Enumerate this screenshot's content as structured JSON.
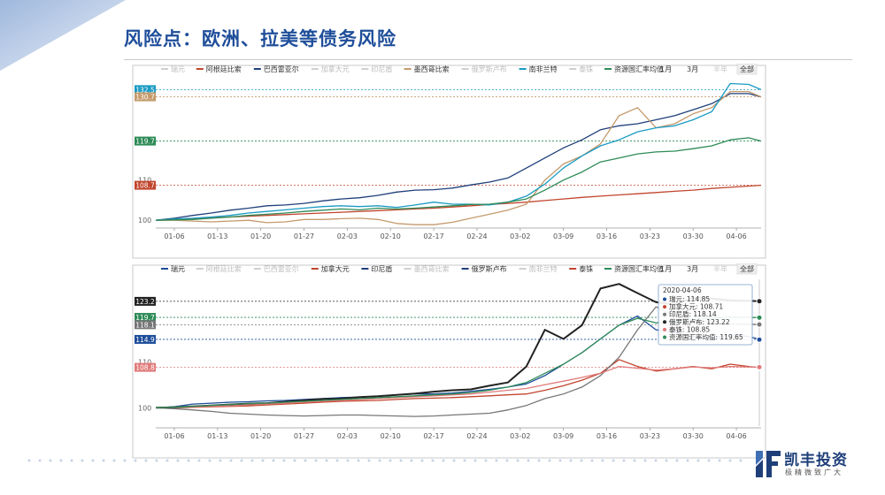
{
  "slide": {
    "title": "风险点：欧洲、拉美等债务风险",
    "colors": {
      "title": "#1f4e9a",
      "accent": "#3f6fb5"
    }
  },
  "logo": {
    "name": "凯丰投资",
    "slogan": "极精微致广大"
  },
  "chart_data": [
    {
      "type": "line",
      "range_buttons": [
        "1月",
        "3月",
        "半年",
        "全部"
      ],
      "selected_range": "全部",
      "x_ticks": [
        "01-06",
        "01-13",
        "01-20",
        "01-27",
        "02-03",
        "02-10",
        "02-17",
        "02-24",
        "03-02",
        "03-09",
        "03-16",
        "03-23",
        "03-30",
        "04-06"
      ],
      "y_ticks": [
        100,
        110
      ],
      "ylim": [
        98.5,
        135
      ],
      "legend": [
        {
          "name": "瑞元",
          "active": false
        },
        {
          "name": "阿根廷比索",
          "active": true
        },
        {
          "name": "巴西雷亚尔",
          "active": true
        },
        {
          "name": "加拿大元",
          "active": false
        },
        {
          "name": "印尼盾",
          "active": false
        },
        {
          "name": "墨西哥比索",
          "active": true
        },
        {
          "name": "俄罗斯卢布",
          "active": false
        },
        {
          "name": "南非兰特",
          "active": true
        },
        {
          "name": "泰铢",
          "active": false
        },
        {
          "name": "资源国汇率均值",
          "active": true
        }
      ],
      "end_labels": [
        {
          "text": "132.5",
          "value": 132.5,
          "color": "#1a9bc4"
        },
        {
          "text": "130.7",
          "value": 130.7,
          "color": "#c49a6c"
        },
        {
          "text": "119.7",
          "value": 119.7,
          "color": "#2e8b57"
        },
        {
          "text": "108.7",
          "value": 108.7,
          "color": "#c2452d"
        }
      ],
      "series": [
        {
          "name": "阿根廷比索",
          "color": "#c2452d",
          "x": [
            0,
            3,
            6,
            9,
            12,
            15,
            18,
            21,
            24,
            27,
            30,
            33,
            36,
            39,
            42,
            45,
            48,
            51,
            54,
            57,
            60,
            63,
            66,
            69,
            72,
            75,
            78,
            81,
            84,
            87,
            90,
            93,
            96,
            98
          ],
          "y": [
            100,
            100.2,
            100.4,
            100.6,
            100.8,
            101,
            101.2,
            101.4,
            101.6,
            101.8,
            102,
            102.2,
            102.4,
            102.6,
            102.8,
            103,
            103.3,
            103.6,
            103.9,
            104.2,
            104.5,
            104.9,
            105.3,
            105.7,
            106,
            106.3,
            106.6,
            106.9,
            107.2,
            107.5,
            107.9,
            108.2,
            108.5,
            108.7
          ]
        },
        {
          "name": "巴西雷亚尔",
          "color": "#1f3f7a",
          "x": [
            0,
            3,
            6,
            9,
            12,
            15,
            18,
            21,
            24,
            27,
            30,
            33,
            36,
            39,
            42,
            45,
            48,
            51,
            54,
            57,
            60,
            63,
            66,
            69,
            72,
            75,
            78,
            81,
            84,
            87,
            90,
            93,
            96,
            98
          ],
          "y": [
            100,
            100.5,
            101.2,
            101.8,
            102.5,
            103,
            103.6,
            103.8,
            104.2,
            104.8,
            105.3,
            105.6,
            106.2,
            107,
            107.5,
            107.6,
            108,
            108.8,
            109.5,
            110.5,
            113,
            115.5,
            118,
            120,
            122.5,
            123.5,
            124,
            125,
            126,
            127.5,
            129,
            131.5,
            131.5,
            130.7
          ]
        },
        {
          "name": "墨西哥比索",
          "color": "#c49a6c",
          "x": [
            0,
            3,
            6,
            9,
            12,
            15,
            18,
            21,
            24,
            27,
            30,
            33,
            36,
            39,
            42,
            45,
            48,
            51,
            54,
            57,
            60,
            63,
            66,
            69,
            72,
            75,
            78,
            81,
            84,
            87,
            90,
            93,
            96,
            98
          ],
          "y": [
            100,
            100,
            99.8,
            99.6,
            99.8,
            100,
            99.4,
            99.6,
            100.2,
            100.2,
            100.4,
            100.5,
            100.2,
            99.2,
            98.9,
            98.9,
            99.5,
            100.5,
            101.5,
            102.5,
            104,
            110,
            114,
            116,
            119,
            126,
            128,
            123,
            124,
            126.5,
            128,
            132,
            132,
            130.7
          ]
        },
        {
          "name": "南非兰特",
          "color": "#1a9bc4",
          "x": [
            0,
            3,
            6,
            9,
            12,
            15,
            18,
            21,
            24,
            27,
            30,
            33,
            36,
            39,
            42,
            45,
            48,
            51,
            54,
            57,
            60,
            63,
            66,
            69,
            72,
            75,
            78,
            81,
            84,
            87,
            90,
            93,
            96,
            98
          ],
          "y": [
            100,
            100.3,
            100.5,
            100.8,
            101.2,
            101.8,
            102.2,
            102.6,
            103,
            103.4,
            103.6,
            103.4,
            103.6,
            103.2,
            103.8,
            104.5,
            104,
            104,
            103.8,
            104.5,
            106,
            109,
            113,
            116,
            118.5,
            120,
            122,
            123,
            123.5,
            125,
            127,
            134,
            133.8,
            132.5
          ]
        },
        {
          "name": "资源国汇率均值",
          "color": "#2e8b57",
          "x": [
            0,
            3,
            6,
            9,
            12,
            15,
            18,
            21,
            24,
            27,
            30,
            33,
            36,
            39,
            42,
            45,
            48,
            51,
            54,
            57,
            60,
            63,
            66,
            69,
            72,
            75,
            78,
            81,
            84,
            87,
            90,
            93,
            96,
            98
          ],
          "y": [
            100,
            100.1,
            100.2,
            100.5,
            100.8,
            101.2,
            101.5,
            101.8,
            102.2,
            102.5,
            102.8,
            102.6,
            103,
            102.8,
            103,
            103.3,
            103.6,
            103.9,
            104,
            104.5,
            105.3,
            107.5,
            110,
            112,
            114.5,
            115.5,
            116.5,
            117,
            117.2,
            117.8,
            118.5,
            120,
            120.5,
            119.7
          ]
        }
      ]
    },
    {
      "type": "line",
      "range_buttons": [
        "1月",
        "3月",
        "半年",
        "全部"
      ],
      "selected_range": "全部",
      "x_ticks": [
        "01-06",
        "01-13",
        "01-20",
        "01-27",
        "02-03",
        "02-10",
        "02-17",
        "02-24",
        "03-02",
        "03-09",
        "03-16",
        "03-23",
        "03-30",
        "04-06"
      ],
      "y_ticks": [
        100,
        110
      ],
      "ylim": [
        96,
        128
      ],
      "legend": [
        {
          "name": "瑞元",
          "active": true
        },
        {
          "name": "阿根廷比索",
          "active": false
        },
        {
          "name": "巴西雷亚尔",
          "active": false
        },
        {
          "name": "加拿大元",
          "active": true
        },
        {
          "name": "印尼盾",
          "active": true
        },
        {
          "name": "墨西哥比索",
          "active": false
        },
        {
          "name": "俄罗斯卢布",
          "active": true
        },
        {
          "name": "南非兰特",
          "active": false
        },
        {
          "name": "泰铢",
          "active": true
        },
        {
          "name": "资源国汇率均值",
          "active": true
        }
      ],
      "end_labels": [
        {
          "text": "123.2",
          "value": 123.2,
          "color": "#222222"
        },
        {
          "text": "119.7",
          "value": 119.7,
          "color": "#2e8b57"
        },
        {
          "text": "118.1",
          "value": 118.1,
          "color": "#777777"
        },
        {
          "text": "114.9",
          "value": 114.9,
          "color": "#1f4e9a"
        },
        {
          "text": "108.8",
          "value": 108.8,
          "color": "#e07a7a"
        }
      ],
      "tooltip": {
        "date": "2020-04-06",
        "rows": [
          {
            "text": "瑞元: 114.85",
            "color": "#1f4e9a"
          },
          {
            "text": "加拿大元: 108.71",
            "color": "#c2452d"
          },
          {
            "text": "印尼盾: 118.14",
            "color": "#777777"
          },
          {
            "text": "俄罗斯卢布: 123.22",
            "color": "#222222"
          },
          {
            "text": "泰铢: 108.85",
            "color": "#e07a7a"
          },
          {
            "text": "资源国汇率均值: 119.65",
            "color": "#2e8b57"
          }
        ]
      },
      "series": [
        {
          "name": "瑞元",
          "color": "#1f4e9a",
          "x": [
            0,
            3,
            6,
            9,
            12,
            15,
            18,
            21,
            24,
            27,
            30,
            33,
            36,
            39,
            42,
            45,
            48,
            51,
            54,
            57,
            60,
            63,
            66,
            69,
            72,
            75,
            78,
            81,
            84,
            87,
            90,
            93,
            96,
            98
          ],
          "y": [
            100,
            100.2,
            100.8,
            101,
            101.2,
            101.3,
            101.5,
            101.6,
            101.8,
            102,
            102.2,
            102.3,
            102.5,
            102.8,
            103,
            103,
            103.2,
            103.6,
            104,
            104.5,
            105.2,
            107,
            109.5,
            112,
            115,
            118,
            120,
            117,
            116.5,
            115.5,
            115,
            116,
            115.5,
            114.85
          ]
        },
        {
          "name": "加拿大元",
          "color": "#c2452d",
          "x": [
            0,
            3,
            6,
            9,
            12,
            15,
            18,
            21,
            24,
            27,
            30,
            33,
            36,
            39,
            42,
            45,
            48,
            51,
            54,
            57,
            60,
            63,
            66,
            69,
            72,
            75,
            78,
            81,
            84,
            87,
            90,
            93,
            96,
            98
          ],
          "y": [
            100,
            100,
            100.1,
            100.2,
            100.3,
            100.4,
            100.6,
            100.8,
            101,
            101.2,
            101.4,
            101.5,
            101.6,
            101.8,
            102,
            102.1,
            102.2,
            102.4,
            102.6,
            102.8,
            103,
            103.8,
            104.8,
            106,
            107.5,
            110.5,
            109,
            108,
            108.5,
            109,
            108.5,
            109.5,
            109,
            108.71
          ]
        },
        {
          "name": "印尼盾",
          "color": "#777777",
          "x": [
            0,
            3,
            6,
            9,
            12,
            15,
            18,
            21,
            24,
            27,
            30,
            33,
            36,
            39,
            42,
            45,
            48,
            51,
            54,
            57,
            60,
            63,
            66,
            69,
            72,
            75,
            78,
            81,
            84,
            87,
            90,
            93,
            96,
            98
          ],
          "y": [
            100,
            99.8,
            99.5,
            99.2,
            98.8,
            98.6,
            98.4,
            98.3,
            98.2,
            98.3,
            98.4,
            98.4,
            98.3,
            98.2,
            98.1,
            98.2,
            98.4,
            98.6,
            98.8,
            99.5,
            100.5,
            102,
            103,
            104.5,
            107,
            111,
            117,
            122,
            120,
            119,
            118.5,
            118.3,
            118.2,
            118.14
          ]
        },
        {
          "name": "俄罗斯卢布",
          "color": "#222222",
          "x": [
            0,
            3,
            6,
            9,
            12,
            15,
            18,
            21,
            24,
            27,
            30,
            33,
            36,
            39,
            42,
            45,
            48,
            51,
            54,
            57,
            60,
            63,
            66,
            69,
            72,
            75,
            78,
            81,
            84,
            87,
            90,
            93,
            96,
            98
          ],
          "y": [
            100,
            100.1,
            100.3,
            100.5,
            100.7,
            100.9,
            101,
            101.3,
            101.6,
            101.9,
            102,
            102.3,
            102.5,
            102.8,
            103.1,
            103.5,
            103.8,
            104,
            104.8,
            105.5,
            109,
            117,
            115,
            118,
            126,
            127,
            125,
            123,
            122.5,
            124,
            123.8,
            123.4,
            123.3,
            123.22
          ]
        },
        {
          "name": "泰铢",
          "color": "#e07a7a",
          "x": [
            0,
            3,
            6,
            9,
            12,
            15,
            18,
            21,
            24,
            27,
            30,
            33,
            36,
            39,
            42,
            45,
            48,
            51,
            54,
            57,
            60,
            63,
            66,
            69,
            72,
            75,
            78,
            81,
            84,
            87,
            90,
            93,
            96,
            98
          ],
          "y": [
            100,
            100.1,
            100.2,
            100.3,
            100.4,
            100.6,
            100.8,
            101,
            101.2,
            101.4,
            101.6,
            101.8,
            102,
            102.2,
            102.4,
            102.6,
            102.8,
            103,
            103.4,
            103.8,
            104.2,
            105,
            105.8,
            106.6,
            107.5,
            109,
            108.6,
            108.2,
            108.5,
            108.9,
            108.7,
            109,
            108.9,
            108.85
          ]
        },
        {
          "name": "资源国汇率均值",
          "color": "#2e8b57",
          "x": [
            0,
            3,
            6,
            9,
            12,
            15,
            18,
            21,
            24,
            27,
            30,
            33,
            36,
            39,
            42,
            45,
            48,
            51,
            54,
            57,
            60,
            63,
            66,
            69,
            72,
            75,
            78,
            81,
            84,
            87,
            90,
            93,
            96,
            98
          ],
          "y": [
            100,
            100.1,
            100.3,
            100.5,
            100.7,
            100.9,
            101,
            101.2,
            101.4,
            101.6,
            101.8,
            102,
            102.2,
            102.4,
            102.6,
            102.8,
            103,
            103.3,
            103.8,
            104.5,
            105.5,
            107.5,
            109.5,
            112,
            115,
            118,
            119.5,
            118.5,
            118.8,
            119.2,
            119.5,
            119.8,
            119.7,
            119.65
          ]
        }
      ]
    }
  ]
}
